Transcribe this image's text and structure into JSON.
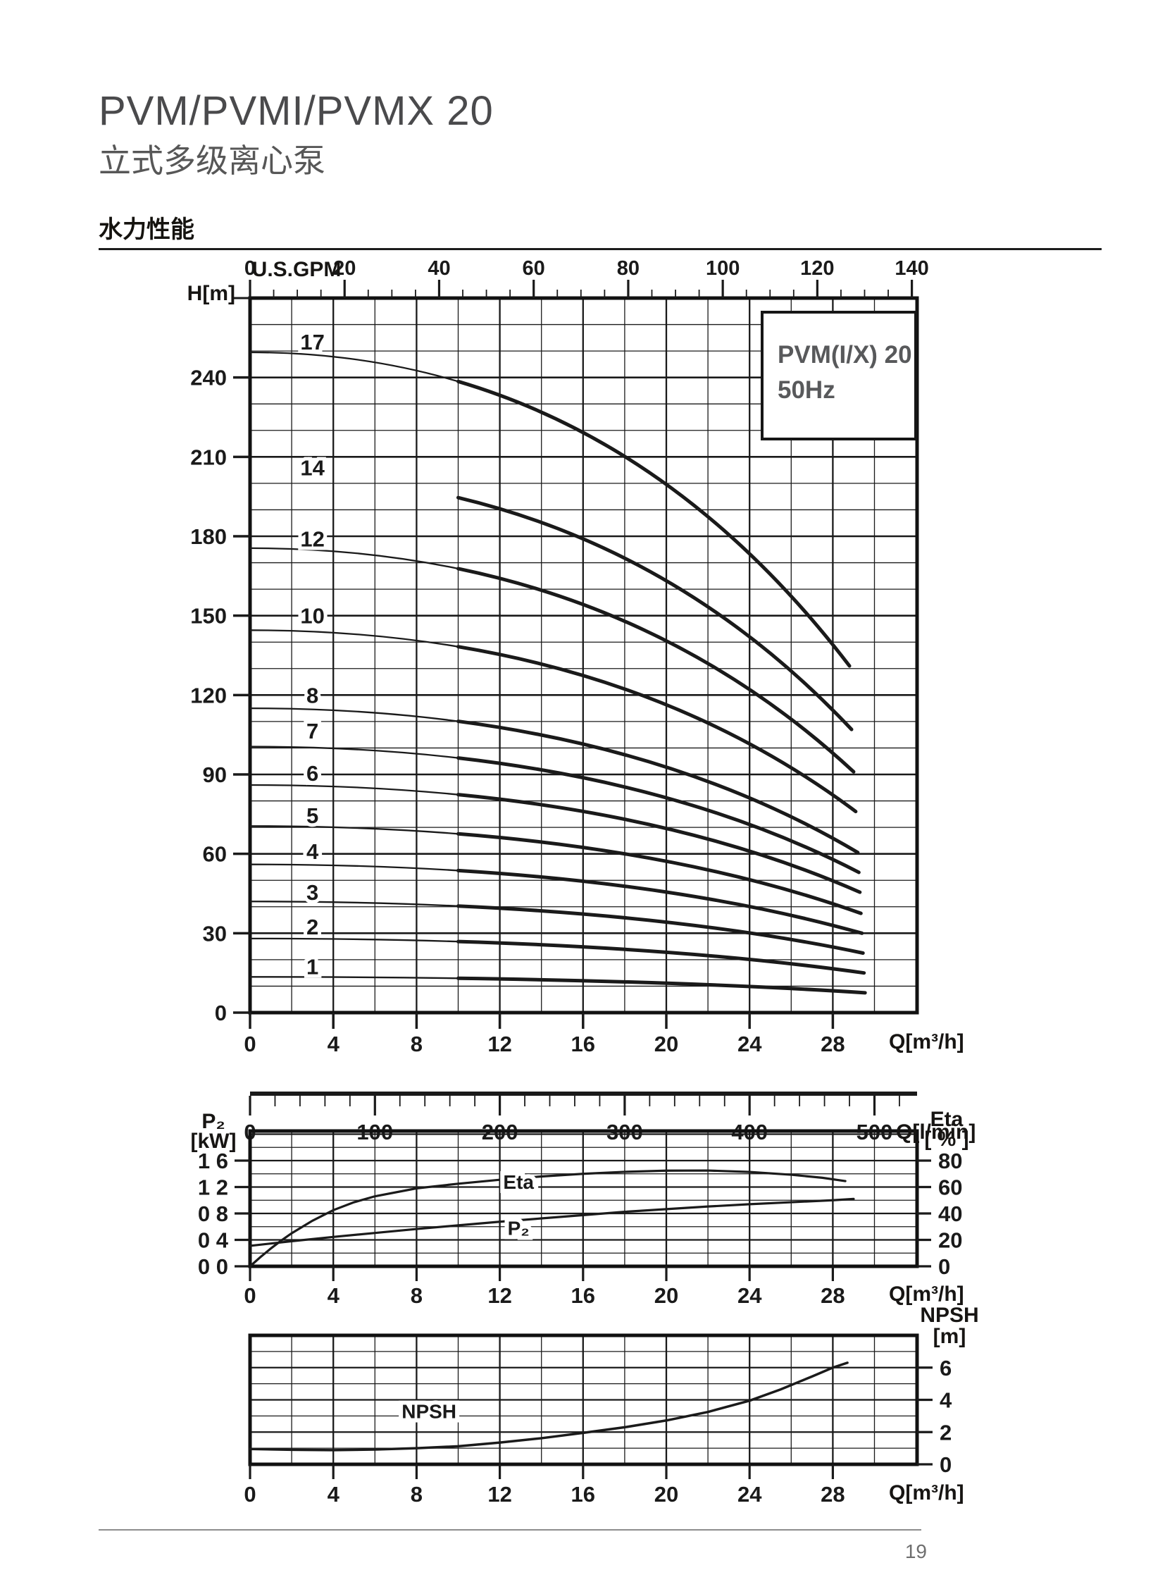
{
  "page": {
    "title": "PVM/PVMI/PVMX 20",
    "subtitle": "立式多级离心泵",
    "section_heading": "水力性能",
    "page_number": "19"
  },
  "legend": {
    "line1": "PVM(I/X) 20",
    "line2": "50Hz"
  },
  "chart_data": [
    {
      "type": "line",
      "name": "head-capacity-curves",
      "title": "PVM(I/X) 20 50Hz",
      "y_axis": {
        "label": "H[m]",
        "ticks": [
          0,
          30,
          60,
          90,
          120,
          150,
          180,
          210,
          240
        ],
        "minor_step": 10,
        "range": [
          0,
          270
        ]
      },
      "x_axis_bottom": {
        "label": "Q[m³/h]",
        "ticks": [
          0,
          4,
          8,
          12,
          16,
          20,
          24,
          28
        ],
        "minor_step": 2,
        "range": [
          0,
          32
        ]
      },
      "x_axis_top": {
        "label": "U.S.GPM",
        "ticks": [
          0,
          20,
          40,
          60,
          80,
          100,
          120,
          140
        ],
        "minor_step": 5,
        "gpm_per_m3h": 4.4029
      },
      "x_axis_secondary": {
        "label": "Q[l/min]",
        "ticks": [
          0,
          100,
          200,
          300,
          400,
          500
        ],
        "minor_step": 20,
        "lmin_per_m3h": 16.6667
      },
      "stages": [
        {
          "label": "17",
          "H0": 249.5,
          "H_end": 131.0,
          "q_start": 0,
          "q_end": 28.8,
          "label_H": 253.5
        },
        {
          "label": "14",
          "H0": 203.5,
          "H_end": 107.0,
          "q_start": 10,
          "q_end": 28.9,
          "label_H": 206.0
        },
        {
          "label": "12",
          "H0": 175.5,
          "H_end": 91.0,
          "q_start": 0,
          "q_end": 29.0,
          "label_H": 179.0
        },
        {
          "label": "10",
          "H0": 144.5,
          "H_end": 76.0,
          "q_start": 0,
          "q_end": 29.1,
          "label_H": 150.0
        },
        {
          "label": "8",
          "H0": 115.0,
          "H_end": 60.5,
          "q_start": 0,
          "q_end": 29.2,
          "label_H": 120.0
        },
        {
          "label": "7",
          "H0": 100.5,
          "H_end": 53.0,
          "q_start": 0,
          "q_end": 29.25,
          "label_H": 106.5
        },
        {
          "label": "6",
          "H0": 86.0,
          "H_end": 45.5,
          "q_start": 0,
          "q_end": 29.3,
          "label_H": 90.5
        },
        {
          "label": "5",
          "H0": 70.5,
          "H_end": 37.5,
          "q_start": 0,
          "q_end": 29.35,
          "label_H": 74.5
        },
        {
          "label": "4",
          "H0": 56.0,
          "H_end": 30.0,
          "q_start": 0,
          "q_end": 29.4,
          "label_H": 61.0
        },
        {
          "label": "3",
          "H0": 42.0,
          "H_end": 22.5,
          "q_start": 0,
          "q_end": 29.45,
          "label_H": 45.5
        },
        {
          "label": "2",
          "H0": 28.0,
          "H_end": 15.0,
          "q_start": 0,
          "q_end": 29.5,
          "label_H": 32.5
        },
        {
          "label": "1",
          "H0": 13.5,
          "H_end": 7.5,
          "q_start": 0,
          "q_end": 29.55,
          "label_H": 17.5
        }
      ],
      "stage_label_q": 3.0
    },
    {
      "type": "line",
      "name": "power-and-efficiency",
      "y_left": {
        "label_top": "P₂",
        "label_unit": "[kW]",
        "tick_labels": [
          "0 0",
          "0 4",
          "0 8",
          "1 2",
          "1 6"
        ],
        "tick_values": [
          0,
          0.4,
          0.8,
          1.2,
          1.6
        ]
      },
      "y_right": {
        "label_top": "Eta",
        "label_unit": "[ % ]",
        "ticks": [
          0,
          20,
          40,
          60,
          80
        ],
        "range": [
          0,
          102
        ]
      },
      "x_axis": {
        "label": "Q[m³/h]",
        "ticks": [
          0,
          4,
          8,
          12,
          16,
          20,
          24,
          28
        ]
      },
      "series": [
        {
          "name": "Eta",
          "label_pos": {
            "q": 12.9,
            "eta": 64
          },
          "points_q_eta": [
            [
              0,
              0
            ],
            [
              0.5,
              7
            ],
            [
              1,
              13.5
            ],
            [
              1.5,
              19.5
            ],
            [
              2,
              25
            ],
            [
              3,
              34.5
            ],
            [
              4,
              42.5
            ],
            [
              5,
              48.5
            ],
            [
              6,
              53
            ],
            [
              8,
              59
            ],
            [
              10,
              62.5
            ],
            [
              12,
              65.5
            ],
            [
              14,
              68
            ],
            [
              16,
              70
            ],
            [
              18,
              71.5
            ],
            [
              20,
              72.4
            ],
            [
              22,
              72.5
            ],
            [
              24,
              71.4
            ],
            [
              26,
              69.3
            ],
            [
              27.5,
              67
            ],
            [
              28.6,
              64.5
            ]
          ]
        },
        {
          "name": "P₂",
          "label_pos": {
            "q": 12.9,
            "eta": 29
          },
          "points_q_kw": [
            [
              0,
              0.31
            ],
            [
              2,
              0.38
            ],
            [
              4,
              0.445
            ],
            [
              6,
              0.505
            ],
            [
              8,
              0.565
            ],
            [
              10,
              0.62
            ],
            [
              12,
              0.675
            ],
            [
              14,
              0.725
            ],
            [
              16,
              0.775
            ],
            [
              18,
              0.825
            ],
            [
              20,
              0.865
            ],
            [
              22,
              0.905
            ],
            [
              24,
              0.94
            ],
            [
              26,
              0.97
            ],
            [
              28,
              1.0
            ],
            [
              29,
              1.02
            ]
          ]
        }
      ]
    },
    {
      "type": "line",
      "name": "npsh",
      "y_right": {
        "label_top": "NPSH",
        "label_unit": "[m]",
        "ticks": [
          0,
          2,
          4,
          6
        ],
        "range": [
          0,
          8
        ]
      },
      "x_axis": {
        "label": "Q[m³/h]",
        "ticks": [
          0,
          4,
          8,
          12,
          16,
          20,
          24,
          28
        ]
      },
      "series": [
        {
          "name": "NPSH",
          "label_pos": {
            "q": 8.6,
            "npsh": 3.3
          },
          "points_q_m": [
            [
              0,
              0.95
            ],
            [
              2,
              0.9
            ],
            [
              4,
              0.88
            ],
            [
              6,
              0.92
            ],
            [
              8,
              1.0
            ],
            [
              10,
              1.12
            ],
            [
              12,
              1.35
            ],
            [
              14,
              1.62
            ],
            [
              16,
              1.95
            ],
            [
              18,
              2.3
            ],
            [
              20,
              2.72
            ],
            [
              22,
              3.25
            ],
            [
              24,
              3.95
            ],
            [
              25.5,
              4.65
            ],
            [
              27,
              5.45
            ],
            [
              28,
              6.0
            ],
            [
              28.7,
              6.3
            ]
          ]
        }
      ]
    }
  ]
}
